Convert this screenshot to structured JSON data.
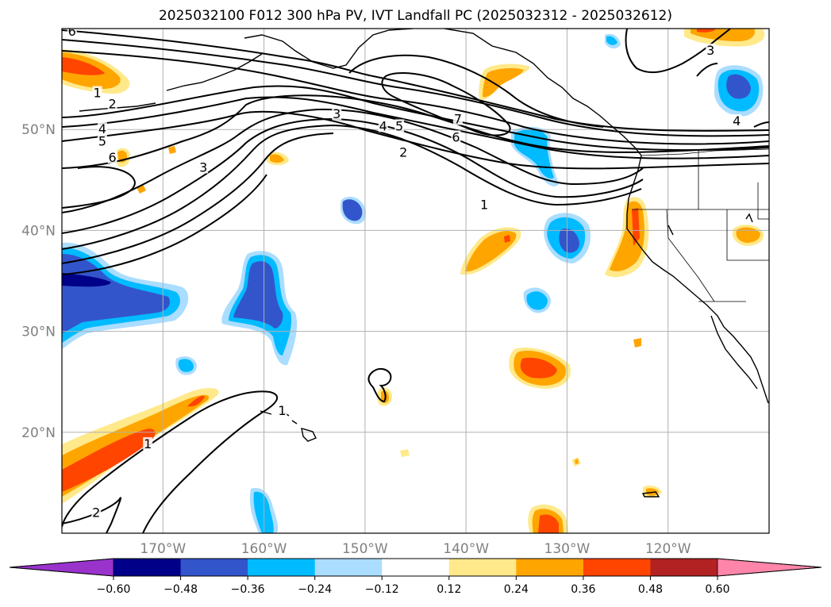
{
  "title": "2025032100 F012 300 hPa PV, IVT Landfall PC (2025032312 - 2025032612)",
  "map": {
    "lon_range": [
      -180,
      -110
    ],
    "lat_range": [
      10,
      60
    ],
    "lat_ticks": [
      {
        "value": 50,
        "label": "50°N"
      },
      {
        "value": 40,
        "label": "40°N"
      },
      {
        "value": 30,
        "label": "30°N"
      },
      {
        "value": 20,
        "label": "20°N"
      }
    ],
    "lon_ticks": [
      {
        "value": -170,
        "label": "170°W"
      },
      {
        "value": -160,
        "label": "160°W"
      },
      {
        "value": -150,
        "label": "150°W"
      },
      {
        "value": -140,
        "label": "140°W"
      },
      {
        "value": -130,
        "label": "130°W"
      },
      {
        "value": -120,
        "label": "120°W"
      }
    ],
    "grid": true
  },
  "contour_labels": [
    {
      "text": "6",
      "lon": -179,
      "lat": 59.7
    },
    {
      "text": "1",
      "lon": -176.5,
      "lat": 53.6
    },
    {
      "text": "2",
      "lon": -175,
      "lat": 52.5
    },
    {
      "text": "4",
      "lon": -176,
      "lat": 50.0
    },
    {
      "text": "5",
      "lon": -176,
      "lat": 48.8
    },
    {
      "text": "6",
      "lon": -175,
      "lat": 47.2
    },
    {
      "text": "3",
      "lon": -166,
      "lat": 46.2
    },
    {
      "text": "3",
      "lon": -152.8,
      "lat": 51.5
    },
    {
      "text": "4",
      "lon": -148.2,
      "lat": 50.3
    },
    {
      "text": "5",
      "lon": -146.6,
      "lat": 50.3
    },
    {
      "text": "7",
      "lon": -140.8,
      "lat": 51.0
    },
    {
      "text": "6",
      "lon": -141,
      "lat": 49.2
    },
    {
      "text": "2",
      "lon": -146.2,
      "lat": 47.7
    },
    {
      "text": "1",
      "lon": -138.2,
      "lat": 42.5
    },
    {
      "text": "3",
      "lon": -115.8,
      "lat": 57.8
    },
    {
      "text": "4",
      "lon": -113.2,
      "lat": 50.8
    },
    {
      "text": "1",
      "lon": -158.2,
      "lat": 22.1
    },
    {
      "text": "1",
      "lon": -171.5,
      "lat": 18.8
    },
    {
      "text": "2",
      "lon": -176.6,
      "lat": 12.0
    }
  ],
  "colorbar": {
    "levels": [
      -0.6,
      -0.48,
      -0.36,
      -0.24,
      -0.12,
      0.12,
      0.24,
      0.36,
      0.48,
      0.6
    ],
    "tick_labels": [
      "−0.60",
      "−0.48",
      "−0.36",
      "−0.24",
      "−0.12",
      "0.12",
      "0.24",
      "0.36",
      "0.48",
      "0.60"
    ],
    "colors": [
      "#9933cc",
      "#000088",
      "#3355cc",
      "#00bbff",
      "#aaddff",
      "#ffffff",
      "#ffe98a",
      "#ffa500",
      "#ff4500",
      "#b22222",
      "#ff85aa"
    ]
  }
}
